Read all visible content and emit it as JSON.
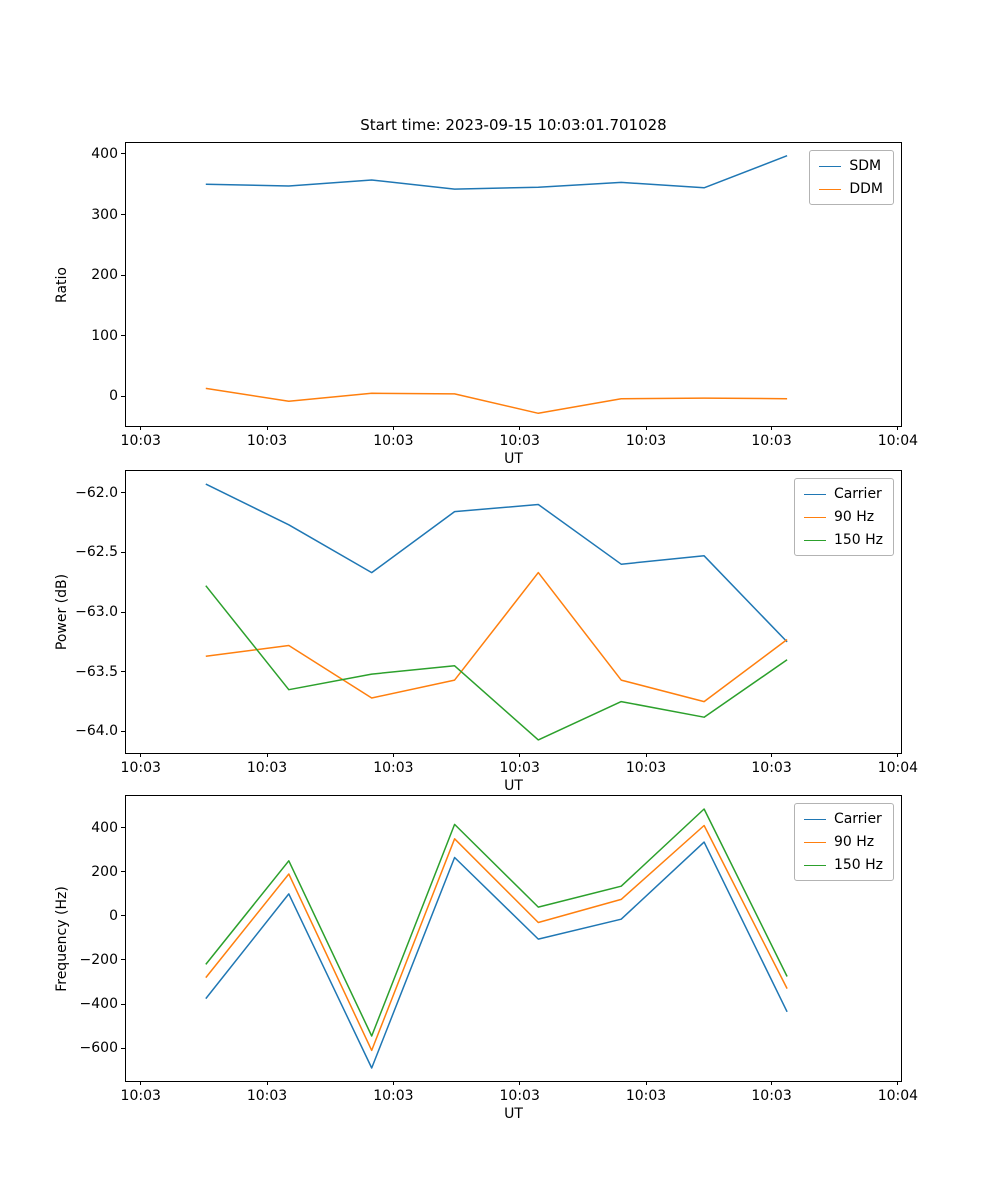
{
  "figure": {
    "title": "Start time: 2023-09-15 10:03:01.701028"
  },
  "colors": {
    "blue": "#1f77b4",
    "orange": "#ff7f0e",
    "green": "#2ca02c"
  },
  "chart_data": [
    {
      "type": "line",
      "title": "Start time: 2023-09-15 10:03:01.701028",
      "xlabel": "UT",
      "ylabel": "Ratio",
      "ylim": [
        -49,
        418
      ],
      "grid": false,
      "legend_position": "upper right",
      "yticks": [
        {
          "v": 0,
          "label": "0"
        },
        {
          "v": 100,
          "label": "100"
        },
        {
          "v": 200,
          "label": "200"
        },
        {
          "v": 300,
          "label": "300"
        },
        {
          "v": 400,
          "label": "400"
        }
      ],
      "xticks": [
        {
          "pos": 0.019,
          "label": "10:03"
        },
        {
          "pos": 0.182,
          "label": "10:03"
        },
        {
          "pos": 0.345,
          "label": "10:03"
        },
        {
          "pos": 0.508,
          "label": "10:03"
        },
        {
          "pos": 0.671,
          "label": "10:03"
        },
        {
          "pos": 0.833,
          "label": "10:03"
        },
        {
          "pos": 0.996,
          "label": "10:04"
        }
      ],
      "x": [
        0.103,
        0.21,
        0.317,
        0.424,
        0.532,
        0.639,
        0.746,
        0.853
      ],
      "series": [
        {
          "name": "SDM",
          "color": "#1f77b4",
          "values": [
            350,
            347,
            357,
            342,
            345,
            353,
            344,
            397
          ]
        },
        {
          "name": "DDM",
          "color": "#ff7f0e",
          "values": [
            13,
            -8,
            5,
            4,
            -28,
            -4,
            -3,
            -4
          ]
        }
      ]
    },
    {
      "type": "line",
      "title": "",
      "xlabel": "UT",
      "ylabel": "Power (dB)",
      "ylim": [
        -64.18,
        -61.82
      ],
      "grid": false,
      "legend_position": "upper right",
      "yticks": [
        {
          "v": -64.0,
          "label": "−64.0"
        },
        {
          "v": -63.5,
          "label": "−63.5"
        },
        {
          "v": -63.0,
          "label": "−63.0"
        },
        {
          "v": -62.5,
          "label": "−62.5"
        },
        {
          "v": -62.0,
          "label": "−62.0"
        }
      ],
      "xticks": [
        {
          "pos": 0.019,
          "label": "10:03"
        },
        {
          "pos": 0.182,
          "label": "10:03"
        },
        {
          "pos": 0.345,
          "label": "10:03"
        },
        {
          "pos": 0.508,
          "label": "10:03"
        },
        {
          "pos": 0.671,
          "label": "10:03"
        },
        {
          "pos": 0.833,
          "label": "10:03"
        },
        {
          "pos": 0.996,
          "label": "10:04"
        }
      ],
      "x": [
        0.103,
        0.21,
        0.317,
        0.424,
        0.532,
        0.639,
        0.746,
        0.853
      ],
      "series": [
        {
          "name": "Carrier",
          "color": "#1f77b4",
          "values": [
            -61.93,
            -62.27,
            -62.67,
            -62.16,
            -62.1,
            -62.6,
            -62.53,
            -63.25
          ]
        },
        {
          "name": "90 Hz",
          "color": "#ff7f0e",
          "values": [
            -63.37,
            -63.28,
            -63.72,
            -63.57,
            -62.67,
            -63.57,
            -63.75,
            -63.23
          ]
        },
        {
          "name": "150 Hz",
          "color": "#2ca02c",
          "values": [
            -62.78,
            -63.65,
            -63.52,
            -63.45,
            -64.07,
            -63.75,
            -63.88,
            -63.4
          ]
        }
      ]
    },
    {
      "type": "line",
      "title": "",
      "xlabel": "UT",
      "ylabel": "Frequency (Hz)",
      "ylim": [
        -749,
        544
      ],
      "grid": false,
      "legend_position": "upper right",
      "yticks": [
        {
          "v": -600,
          "label": "−600"
        },
        {
          "v": -400,
          "label": "−400"
        },
        {
          "v": -200,
          "label": "−200"
        },
        {
          "v": 0,
          "label": "0"
        },
        {
          "v": 200,
          "label": "200"
        },
        {
          "v": 400,
          "label": "400"
        }
      ],
      "xticks": [
        {
          "pos": 0.019,
          "label": "10:03"
        },
        {
          "pos": 0.182,
          "label": "10:03"
        },
        {
          "pos": 0.345,
          "label": "10:03"
        },
        {
          "pos": 0.508,
          "label": "10:03"
        },
        {
          "pos": 0.671,
          "label": "10:03"
        },
        {
          "pos": 0.833,
          "label": "10:03"
        },
        {
          "pos": 0.996,
          "label": "10:04"
        }
      ],
      "x": [
        0.103,
        0.21,
        0.317,
        0.424,
        0.532,
        0.639,
        0.746,
        0.853
      ],
      "series": [
        {
          "name": "Carrier",
          "color": "#1f77b4",
          "values": [
            -375,
            100,
            -690,
            265,
            -105,
            -15,
            335,
            -435
          ]
        },
        {
          "name": "90 Hz",
          "color": "#ff7f0e",
          "values": [
            -280,
            190,
            -610,
            350,
            -30,
            75,
            410,
            -330
          ]
        },
        {
          "name": "150 Hz",
          "color": "#2ca02c",
          "values": [
            -220,
            250,
            -545,
            415,
            40,
            135,
            485,
            -275
          ]
        }
      ]
    }
  ]
}
